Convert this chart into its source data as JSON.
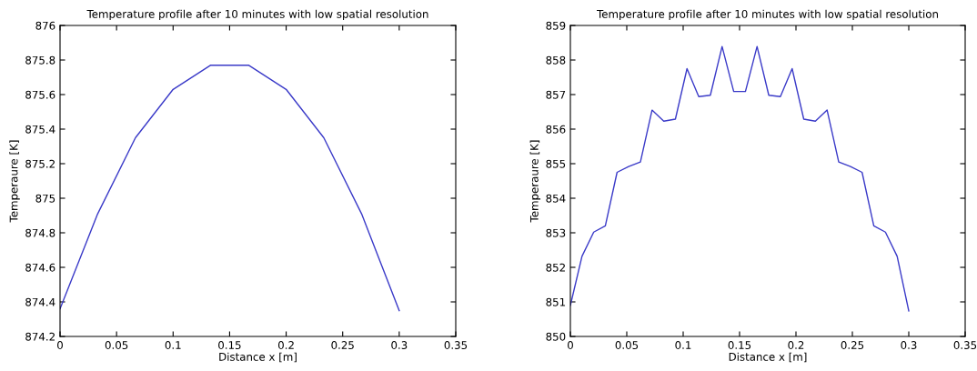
{
  "chart_data": [
    {
      "type": "line",
      "title": "Temperature profile after 10 minutes with low spatial resolution",
      "xlabel": "Distance x [m]",
      "ylabel": "Temperaure [K]",
      "series": [
        {
          "color": "#3a3ac8",
          "x": [
            0,
            0.0333,
            0.0667,
            0.1,
            0.1333,
            0.1667,
            0.2,
            0.2333,
            0.2667,
            0.3
          ],
          "values": [
            874.36,
            874.91,
            875.35,
            875.63,
            875.77,
            875.77,
            875.63,
            875.35,
            874.91,
            874.35
          ]
        }
      ],
      "xlim": [
        0,
        0.35
      ],
      "xticks": [
        0,
        0.05,
        0.1,
        0.15,
        0.2,
        0.25,
        0.3,
        0.35
      ],
      "ylim": [
        874.2,
        876
      ],
      "yticks": [
        874.2,
        874.4,
        874.6,
        874.8,
        875,
        875.2,
        875.4,
        875.6,
        875.8,
        876
      ],
      "grid": false
    },
    {
      "type": "line",
      "title": "Temperature profile after 10 minutes with low spatial resolution",
      "xlabel": "Distance x [m]",
      "ylabel": "Temperaure [K]",
      "series": [
        {
          "color": "#3a3ac8",
          "x": [
            0,
            0.0103,
            0.0207,
            0.031,
            0.0414,
            0.0517,
            0.0621,
            0.0724,
            0.0828,
            0.0931,
            0.1034,
            0.1138,
            0.1241,
            0.1345,
            0.1448,
            0.1552,
            0.1655,
            0.1759,
            0.1862,
            0.1966,
            0.2069,
            0.2172,
            0.2276,
            0.2379,
            0.2483,
            0.2586,
            0.269,
            0.2793,
            0.2897,
            0.3
          ],
          "values": [
            850.9,
            852.32,
            853.02,
            853.2,
            854.75,
            854.92,
            855.05,
            856.55,
            856.23,
            856.29,
            857.75,
            856.94,
            856.98,
            858.39,
            857.09,
            857.09,
            858.39,
            856.98,
            856.94,
            857.75,
            856.29,
            856.23,
            856.55,
            855.05,
            854.92,
            854.75,
            853.2,
            853.02,
            852.32,
            850.74
          ]
        }
      ],
      "xlim": [
        0,
        0.35
      ],
      "xticks": [
        0,
        0.05,
        0.1,
        0.15,
        0.2,
        0.25,
        0.3,
        0.35
      ],
      "ylim": [
        850,
        859
      ],
      "yticks": [
        850,
        851,
        852,
        853,
        854,
        855,
        856,
        857,
        858,
        859
      ],
      "grid": false
    }
  ]
}
